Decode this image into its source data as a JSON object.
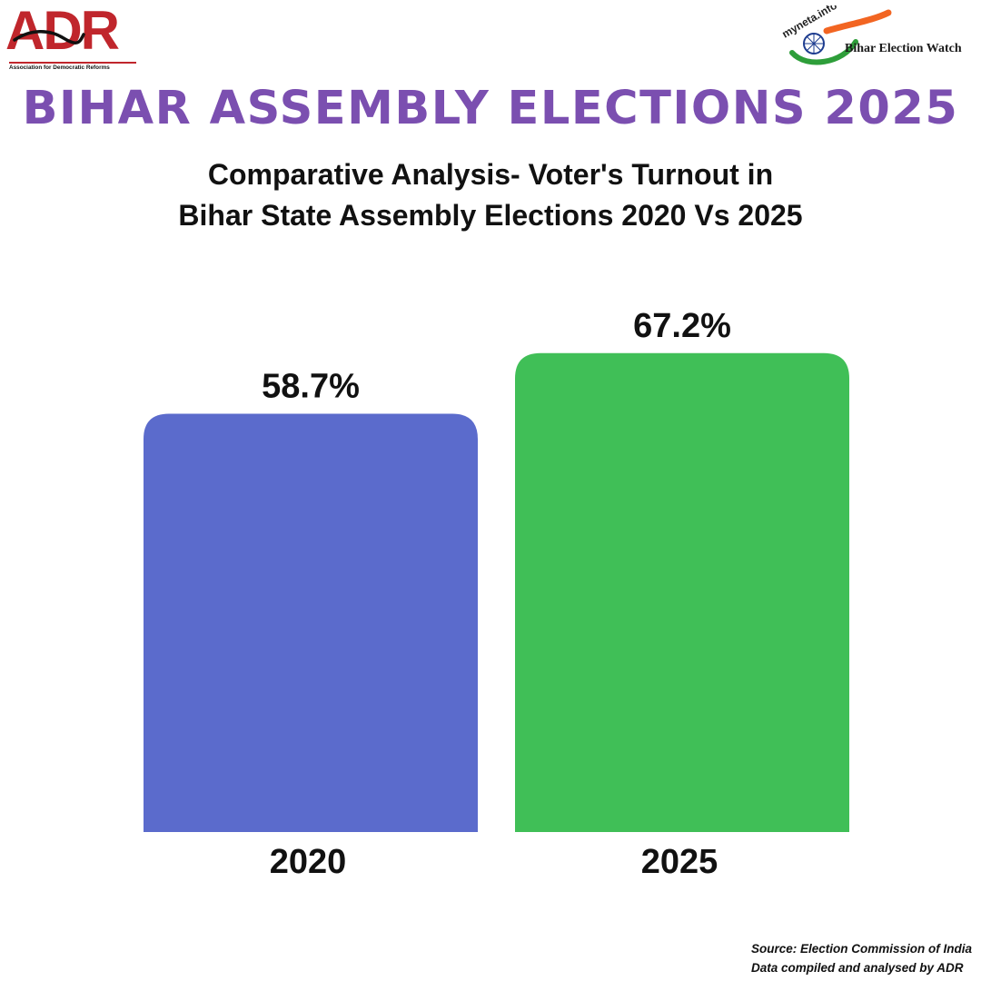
{
  "branding": {
    "adr_name": "ADR",
    "adr_full_name": "Association for Democratic Reforms",
    "watch_site": "myneta.info",
    "watch_name": "Bihar Election Watch"
  },
  "chart_data": {
    "type": "bar",
    "title": "BIHAR ASSEMBLY ELECTIONS 2025",
    "subtitle_lines": [
      "Comparative Analysis- Voter's Turnout in",
      "Bihar State Assembly Elections 2020 Vs 2025"
    ],
    "categories": [
      "2020",
      "2025"
    ],
    "values": [
      58.7,
      67.2
    ],
    "value_labels": [
      "58.7%",
      "67.2%"
    ],
    "colors": [
      "#5b6bcc",
      "#40bf57"
    ],
    "xlabel": "",
    "ylabel": "",
    "ylim": [
      0,
      77.5
    ],
    "grid": false
  },
  "footer": {
    "source_line": "Source: Election Commission of India",
    "compiled_line": "Data compiled and analysed by ADR"
  },
  "colors": {
    "title": "#7b4fb0",
    "adr_red": "#c0262c",
    "saffron": "#f26522",
    "india_green": "#138808"
  }
}
